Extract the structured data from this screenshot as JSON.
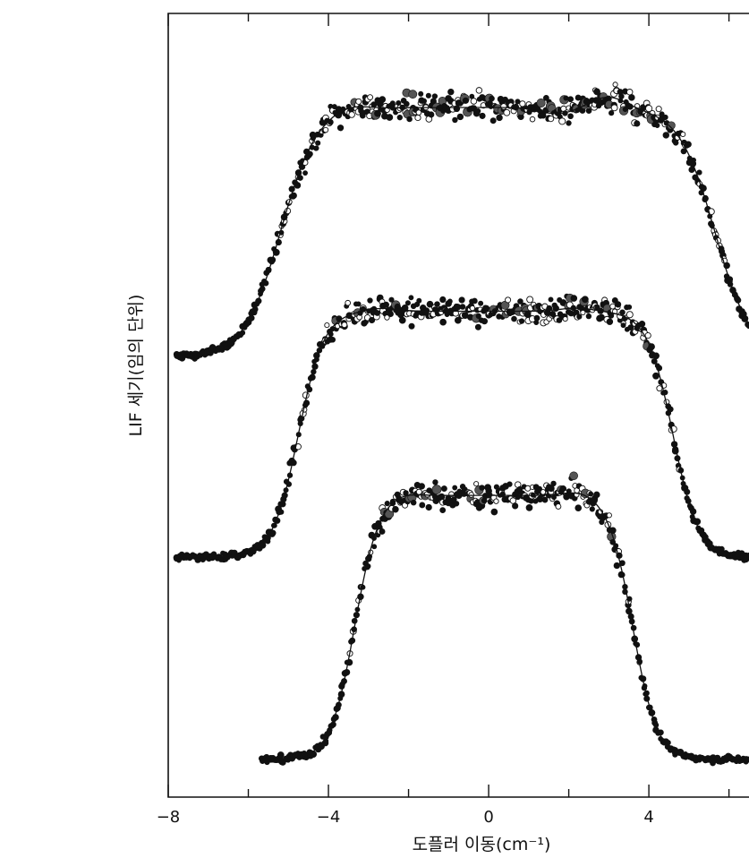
{
  "chart_data": {
    "type": "scatter",
    "title": "",
    "xlabel": "도플러 이동(cm⁻¹)",
    "ylabel": "LIF 세기(임의 단위)",
    "xlim": [
      -8,
      6.5
    ],
    "ylim": [
      0,
      1
    ],
    "x_ticks": [
      -8,
      -4,
      0,
      4
    ],
    "x_tick_labels": [
      "−8",
      "−4",
      "0",
      "4"
    ],
    "y_tick_labels": [],
    "grid": false,
    "legend": "none",
    "series": [
      {
        "x_start": -7.8,
        "rise_mid": -5.2,
        "fall_mid": 5.65,
        "edge_width": 0.45,
        "baseline": 0.562,
        "plateau": 0.88,
        "bumps": [
          {
            "x": -3.5,
            "dy": 0.006
          },
          {
            "x": 1.7,
            "dy": -0.008
          },
          {
            "x": 3.0,
            "dy": 0.014
          }
        ]
      },
      {
        "x_start": -7.8,
        "rise_mid": -4.75,
        "fall_mid": 4.6,
        "edge_width": 0.32,
        "baseline": 0.306,
        "plateau": 0.62,
        "bumps": [
          {
            "x": -2.7,
            "dy": 0.004
          },
          {
            "x": 2.2,
            "dy": 0.004
          }
        ]
      },
      {
        "x_start": -5.65,
        "rise_mid": -3.35,
        "fall_mid": 3.6,
        "edge_width": 0.3,
        "baseline": 0.048,
        "plateau": 0.385,
        "bumps": [
          {
            "x": -2.2,
            "dy": 0.004
          },
          {
            "x": 2.3,
            "dy": 0.006
          }
        ]
      }
    ],
    "markers": [
      "filled",
      "open",
      "gray"
    ]
  }
}
